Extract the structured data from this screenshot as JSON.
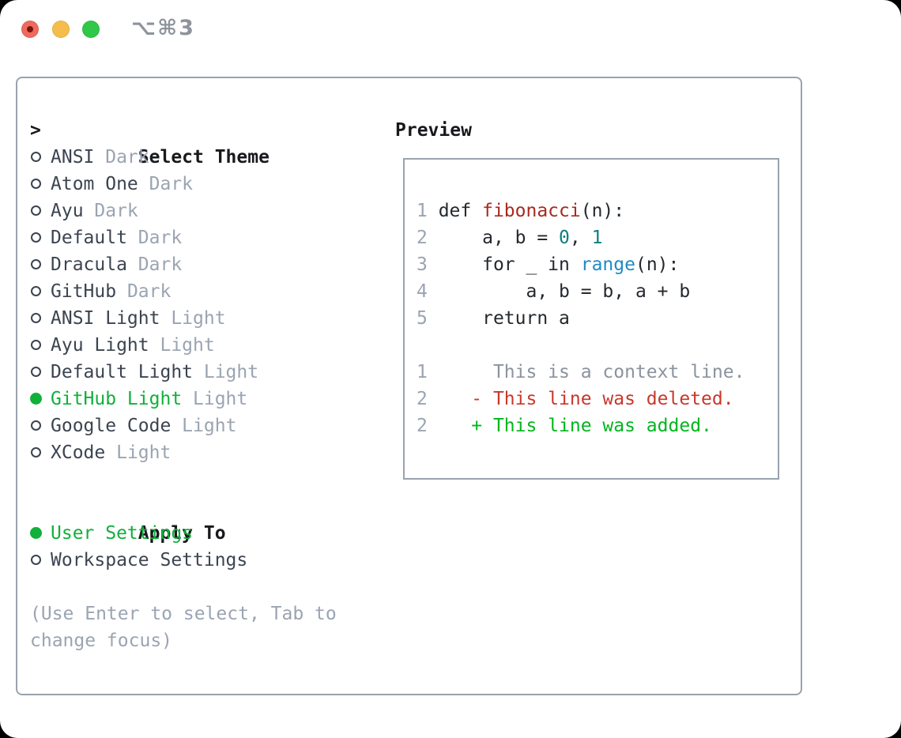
{
  "window": {
    "title_shortcut": "⌥⌘3",
    "traffic_lights": [
      "close",
      "minimize",
      "zoom"
    ]
  },
  "colors": {
    "accent_green": "#10b03b",
    "border": "#99a3ae",
    "heading": "#17191c",
    "item": "#3b4450",
    "muted": "#9aa4b2",
    "lineno": "#9aa4b2",
    "code": "#24292e",
    "func": "#a72a21",
    "literal": "#0e7d82",
    "builtin": "#1f8bc4",
    "context": "#8b939e",
    "deleted": "#c9372c",
    "added": "#00b61d"
  },
  "theme_panel": {
    "header": {
      "marker": ">",
      "label": "Select Theme"
    },
    "items": [
      {
        "name": "ANSI",
        "variant": "Dark",
        "selected": false
      },
      {
        "name": "Atom One",
        "variant": "Dark",
        "selected": false
      },
      {
        "name": "Ayu",
        "variant": "Dark",
        "selected": false
      },
      {
        "name": "Default",
        "variant": "Dark",
        "selected": false
      },
      {
        "name": "Dracula",
        "variant": "Dark",
        "selected": false
      },
      {
        "name": "GitHub",
        "variant": "Dark",
        "selected": false
      },
      {
        "name": "ANSI Light",
        "variant": "Light",
        "selected": false
      },
      {
        "name": "Ayu Light",
        "variant": "Light",
        "selected": false
      },
      {
        "name": "Default Light",
        "variant": "Light",
        "selected": false
      },
      {
        "name": "GitHub Light",
        "variant": "Light",
        "selected": true
      },
      {
        "name": "Google Code",
        "variant": "Light",
        "selected": false
      },
      {
        "name": "XCode",
        "variant": "Light",
        "selected": false
      }
    ],
    "apply_to": {
      "header": "Apply To",
      "options": [
        {
          "name": "User Settings",
          "selected": true
        },
        {
          "name": "Workspace Settings",
          "selected": false
        }
      ]
    },
    "hint_lines": [
      "(Use Enter to select, Tab to",
      "change focus)"
    ]
  },
  "preview": {
    "heading": "Preview",
    "lines": [
      {
        "segments": [
          [
            "1 ",
            "lineno"
          ],
          [
            "def ",
            "code"
          ],
          [
            "fibonacci",
            "func"
          ],
          [
            "(n):",
            "code"
          ]
        ]
      },
      {
        "segments": [
          [
            "2 ",
            "lineno"
          ],
          [
            "    a, b = ",
            "code"
          ],
          [
            "0",
            "literal"
          ],
          [
            ", ",
            "code"
          ],
          [
            "1",
            "literal"
          ]
        ]
      },
      {
        "segments": [
          [
            "3 ",
            "lineno"
          ],
          [
            "    for _ in ",
            "code"
          ],
          [
            "range",
            "builtin"
          ],
          [
            "(n):",
            "code"
          ]
        ]
      },
      {
        "segments": [
          [
            "4 ",
            "lineno"
          ],
          [
            "        a, b = b, a + b",
            "code"
          ]
        ]
      },
      {
        "segments": [
          [
            "5 ",
            "lineno"
          ],
          [
            "    return a",
            "code"
          ]
        ]
      },
      {
        "segments": []
      },
      {
        "segments": [
          [
            "1 ",
            "lineno"
          ],
          [
            "     This is a context line.",
            "context"
          ]
        ]
      },
      {
        "segments": [
          [
            "2 ",
            "lineno"
          ],
          [
            "   - This line was deleted.",
            "deleted"
          ]
        ]
      },
      {
        "segments": [
          [
            "2 ",
            "lineno"
          ],
          [
            "   + This line was added.",
            "added"
          ]
        ]
      }
    ]
  }
}
